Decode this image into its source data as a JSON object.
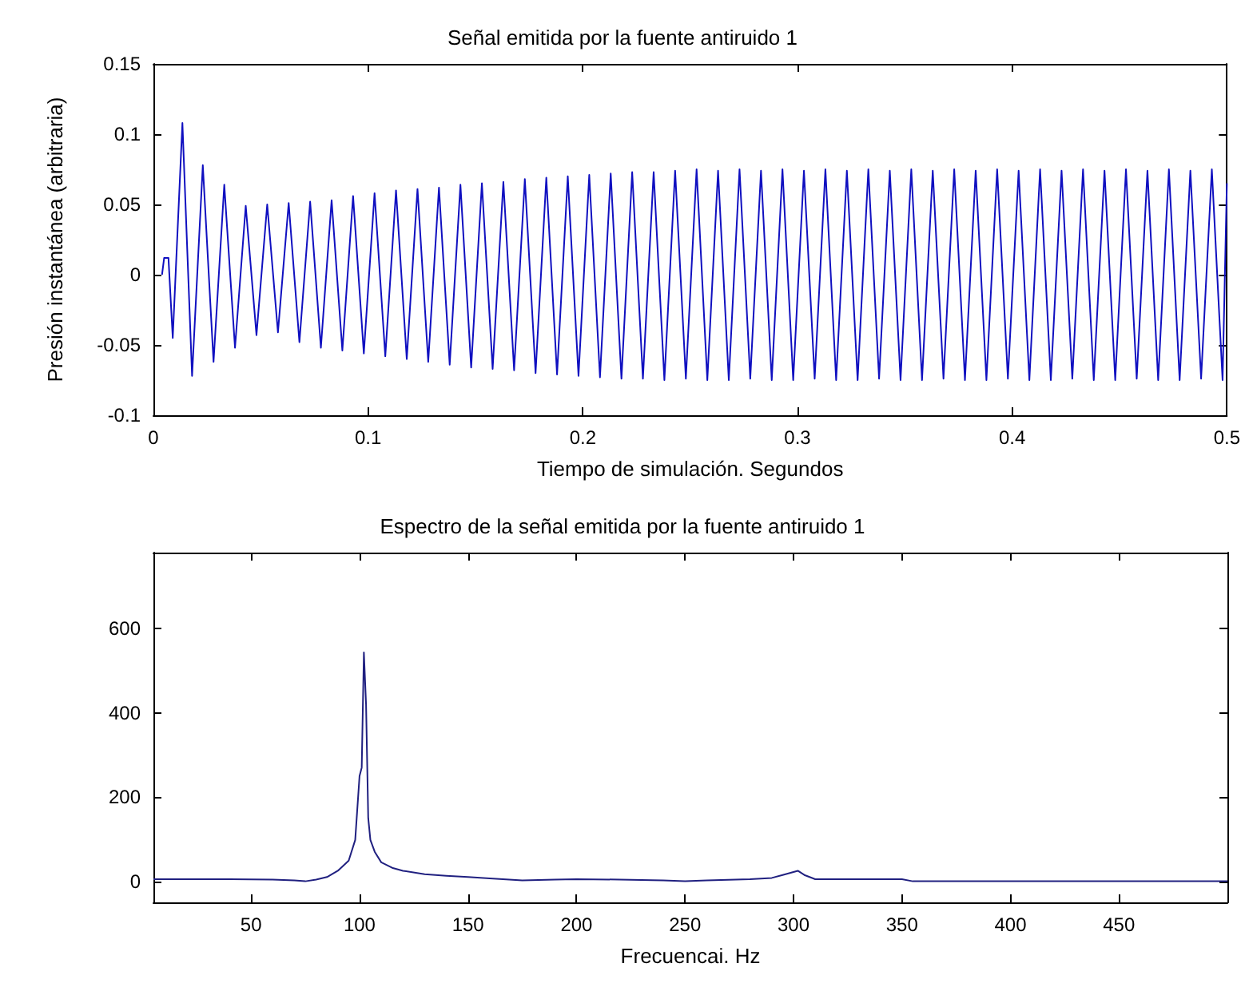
{
  "chart_data": [
    {
      "type": "line",
      "title": "Señal emitida por la fuente antiruido 1",
      "xlabel": "Tiempo de simulación. Segundos",
      "ylabel": "Presión instantánea (arbitraria)",
      "color": "#1010c0",
      "xlim": [
        0,
        0.5
      ],
      "xticks": [
        0,
        0.1,
        0.2,
        0.3,
        0.4,
        0.5
      ],
      "ylim": [
        -0.1,
        0.15
      ],
      "yticks": [
        -0.1,
        -0.05,
        0,
        0.05,
        0.1,
        0.15
      ],
      "x": [
        0.004,
        0.005,
        0.007,
        0.009,
        0.0135,
        0.018,
        0.023,
        0.028,
        0.033,
        0.038,
        0.043,
        0.048,
        0.053,
        0.058,
        0.063,
        0.068,
        0.073,
        0.078,
        0.083,
        0.088,
        0.093,
        0.098,
        0.103,
        0.108,
        0.113,
        0.118,
        0.123,
        0.128,
        0.133,
        0.138,
        0.143,
        0.148,
        0.153,
        0.158,
        0.163,
        0.168,
        0.173,
        0.178,
        0.183,
        0.188,
        0.193,
        0.198,
        0.203,
        0.208,
        0.213,
        0.218,
        0.223,
        0.228,
        0.233,
        0.238,
        0.243,
        0.248,
        0.253,
        0.258,
        0.263,
        0.268,
        0.273,
        0.278,
        0.283,
        0.288,
        0.293,
        0.298,
        0.303,
        0.308,
        0.313,
        0.318,
        0.323,
        0.328,
        0.333,
        0.338,
        0.343,
        0.348,
        0.353,
        0.358,
        0.363,
        0.368,
        0.373,
        0.378,
        0.383,
        0.388,
        0.393,
        0.398,
        0.403,
        0.408,
        0.413,
        0.418,
        0.423,
        0.428,
        0.433,
        0.438,
        0.443,
        0.448,
        0.453,
        0.458,
        0.463,
        0.468,
        0.473,
        0.478,
        0.483,
        0.488,
        0.493,
        0.498,
        0.5
      ],
      "values": [
        0,
        0.012,
        0.012,
        -0.045,
        0.108,
        -0.072,
        0.078,
        -0.062,
        0.064,
        -0.052,
        0.049,
        -0.043,
        0.05,
        -0.041,
        0.051,
        -0.048,
        0.052,
        -0.052,
        0.053,
        -0.054,
        0.056,
        -0.056,
        0.058,
        -0.058,
        0.06,
        -0.06,
        0.061,
        -0.062,
        0.062,
        -0.064,
        0.064,
        -0.066,
        0.065,
        -0.067,
        0.066,
        -0.068,
        0.068,
        -0.07,
        0.069,
        -0.071,
        0.07,
        -0.072,
        0.071,
        -0.073,
        0.072,
        -0.074,
        0.073,
        -0.074,
        0.073,
        -0.075,
        0.074,
        -0.074,
        0.075,
        -0.075,
        0.074,
        -0.075,
        0.075,
        -0.074,
        0.074,
        -0.075,
        0.075,
        -0.075,
        0.074,
        -0.074,
        0.075,
        -0.075,
        0.074,
        -0.075,
        0.075,
        -0.074,
        0.074,
        -0.075,
        0.075,
        -0.075,
        0.074,
        -0.074,
        0.075,
        -0.075,
        0.074,
        -0.075,
        0.075,
        -0.074,
        0.074,
        -0.075,
        0.075,
        -0.075,
        0.074,
        -0.074,
        0.075,
        -0.075,
        0.074,
        -0.075,
        0.075,
        -0.074,
        0.074,
        -0.075,
        0.075,
        -0.075,
        0.074,
        -0.074,
        0.075,
        -0.075,
        0.065
      ]
    },
    {
      "type": "line",
      "title": "Espectro de la señal emitida por la fuente antiruido 1",
      "xlabel": "Frecuencai. Hz",
      "color": "#202080",
      "xlim": [
        5,
        500
      ],
      "xticks": [
        50,
        100,
        150,
        200,
        250,
        300,
        350,
        400,
        450
      ],
      "ylim": [
        -50,
        780
      ],
      "yticks": [
        0,
        200,
        400,
        600
      ],
      "x": [
        5,
        20,
        40,
        60,
        70,
        75,
        80,
        85,
        90,
        95,
        98,
        100,
        101,
        102,
        103,
        104,
        105,
        107,
        110,
        115,
        120,
        130,
        140,
        150,
        160,
        175,
        190,
        200,
        220,
        240,
        250,
        260,
        280,
        290,
        295,
        300,
        302,
        305,
        310,
        320,
        340,
        350,
        355,
        400,
        450,
        500
      ],
      "values": [
        5,
        5,
        5,
        4,
        2,
        0,
        4,
        10,
        25,
        49,
        98,
        250,
        270,
        543,
        420,
        150,
        98,
        70,
        45,
        32,
        25,
        17,
        13,
        10,
        7,
        2,
        4,
        5,
        4,
        2,
        0,
        2,
        5,
        8,
        15,
        22,
        25,
        15,
        5,
        5,
        5,
        5,
        0,
        0,
        0,
        0
      ]
    }
  ]
}
